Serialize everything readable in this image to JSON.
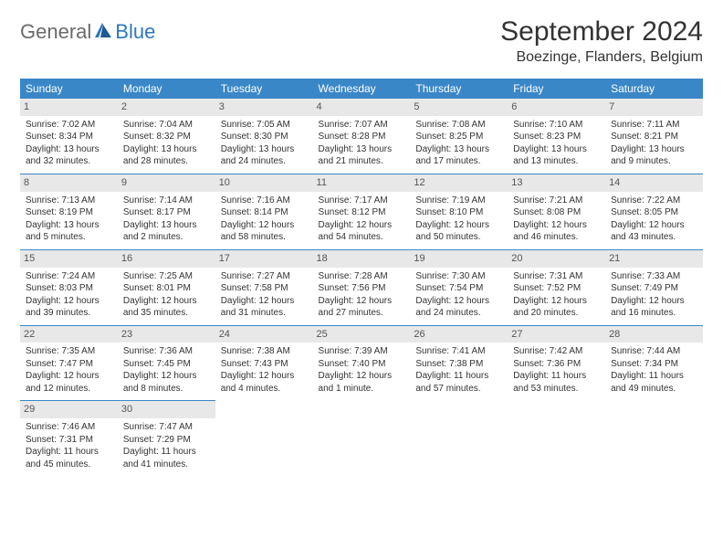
{
  "logo": {
    "part1": "General",
    "part2": "Blue"
  },
  "title": "September 2024",
  "location": "Boezinge, Flanders, Belgium",
  "colors": {
    "header_bg": "#3a87c8",
    "header_text": "#ffffff",
    "daynum_bg": "#e8e8e8",
    "row_divider": "#3a87c8",
    "brand_blue": "#2f77bb",
    "brand_gray": "#6a6a6a"
  },
  "weekdays": [
    "Sunday",
    "Monday",
    "Tuesday",
    "Wednesday",
    "Thursday",
    "Friday",
    "Saturday"
  ],
  "days": [
    {
      "n": "1",
      "sr": "Sunrise: 7:02 AM",
      "ss": "Sunset: 8:34 PM",
      "dl": "Daylight: 13 hours and 32 minutes."
    },
    {
      "n": "2",
      "sr": "Sunrise: 7:04 AM",
      "ss": "Sunset: 8:32 PM",
      "dl": "Daylight: 13 hours and 28 minutes."
    },
    {
      "n": "3",
      "sr": "Sunrise: 7:05 AM",
      "ss": "Sunset: 8:30 PM",
      "dl": "Daylight: 13 hours and 24 minutes."
    },
    {
      "n": "4",
      "sr": "Sunrise: 7:07 AM",
      "ss": "Sunset: 8:28 PM",
      "dl": "Daylight: 13 hours and 21 minutes."
    },
    {
      "n": "5",
      "sr": "Sunrise: 7:08 AM",
      "ss": "Sunset: 8:25 PM",
      "dl": "Daylight: 13 hours and 17 minutes."
    },
    {
      "n": "6",
      "sr": "Sunrise: 7:10 AM",
      "ss": "Sunset: 8:23 PM",
      "dl": "Daylight: 13 hours and 13 minutes."
    },
    {
      "n": "7",
      "sr": "Sunrise: 7:11 AM",
      "ss": "Sunset: 8:21 PM",
      "dl": "Daylight: 13 hours and 9 minutes."
    },
    {
      "n": "8",
      "sr": "Sunrise: 7:13 AM",
      "ss": "Sunset: 8:19 PM",
      "dl": "Daylight: 13 hours and 5 minutes."
    },
    {
      "n": "9",
      "sr": "Sunrise: 7:14 AM",
      "ss": "Sunset: 8:17 PM",
      "dl": "Daylight: 13 hours and 2 minutes."
    },
    {
      "n": "10",
      "sr": "Sunrise: 7:16 AM",
      "ss": "Sunset: 8:14 PM",
      "dl": "Daylight: 12 hours and 58 minutes."
    },
    {
      "n": "11",
      "sr": "Sunrise: 7:17 AM",
      "ss": "Sunset: 8:12 PM",
      "dl": "Daylight: 12 hours and 54 minutes."
    },
    {
      "n": "12",
      "sr": "Sunrise: 7:19 AM",
      "ss": "Sunset: 8:10 PM",
      "dl": "Daylight: 12 hours and 50 minutes."
    },
    {
      "n": "13",
      "sr": "Sunrise: 7:21 AM",
      "ss": "Sunset: 8:08 PM",
      "dl": "Daylight: 12 hours and 46 minutes."
    },
    {
      "n": "14",
      "sr": "Sunrise: 7:22 AM",
      "ss": "Sunset: 8:05 PM",
      "dl": "Daylight: 12 hours and 43 minutes."
    },
    {
      "n": "15",
      "sr": "Sunrise: 7:24 AM",
      "ss": "Sunset: 8:03 PM",
      "dl": "Daylight: 12 hours and 39 minutes."
    },
    {
      "n": "16",
      "sr": "Sunrise: 7:25 AM",
      "ss": "Sunset: 8:01 PM",
      "dl": "Daylight: 12 hours and 35 minutes."
    },
    {
      "n": "17",
      "sr": "Sunrise: 7:27 AM",
      "ss": "Sunset: 7:58 PM",
      "dl": "Daylight: 12 hours and 31 minutes."
    },
    {
      "n": "18",
      "sr": "Sunrise: 7:28 AM",
      "ss": "Sunset: 7:56 PM",
      "dl": "Daylight: 12 hours and 27 minutes."
    },
    {
      "n": "19",
      "sr": "Sunrise: 7:30 AM",
      "ss": "Sunset: 7:54 PM",
      "dl": "Daylight: 12 hours and 24 minutes."
    },
    {
      "n": "20",
      "sr": "Sunrise: 7:31 AM",
      "ss": "Sunset: 7:52 PM",
      "dl": "Daylight: 12 hours and 20 minutes."
    },
    {
      "n": "21",
      "sr": "Sunrise: 7:33 AM",
      "ss": "Sunset: 7:49 PM",
      "dl": "Daylight: 12 hours and 16 minutes."
    },
    {
      "n": "22",
      "sr": "Sunrise: 7:35 AM",
      "ss": "Sunset: 7:47 PM",
      "dl": "Daylight: 12 hours and 12 minutes."
    },
    {
      "n": "23",
      "sr": "Sunrise: 7:36 AM",
      "ss": "Sunset: 7:45 PM",
      "dl": "Daylight: 12 hours and 8 minutes."
    },
    {
      "n": "24",
      "sr": "Sunrise: 7:38 AM",
      "ss": "Sunset: 7:43 PM",
      "dl": "Daylight: 12 hours and 4 minutes."
    },
    {
      "n": "25",
      "sr": "Sunrise: 7:39 AM",
      "ss": "Sunset: 7:40 PM",
      "dl": "Daylight: 12 hours and 1 minute."
    },
    {
      "n": "26",
      "sr": "Sunrise: 7:41 AM",
      "ss": "Sunset: 7:38 PM",
      "dl": "Daylight: 11 hours and 57 minutes."
    },
    {
      "n": "27",
      "sr": "Sunrise: 7:42 AM",
      "ss": "Sunset: 7:36 PM",
      "dl": "Daylight: 11 hours and 53 minutes."
    },
    {
      "n": "28",
      "sr": "Sunrise: 7:44 AM",
      "ss": "Sunset: 7:34 PM",
      "dl": "Daylight: 11 hours and 49 minutes."
    },
    {
      "n": "29",
      "sr": "Sunrise: 7:46 AM",
      "ss": "Sunset: 7:31 PM",
      "dl": "Daylight: 11 hours and 45 minutes."
    },
    {
      "n": "30",
      "sr": "Sunrise: 7:47 AM",
      "ss": "Sunset: 7:29 PM",
      "dl": "Daylight: 11 hours and 41 minutes."
    }
  ]
}
